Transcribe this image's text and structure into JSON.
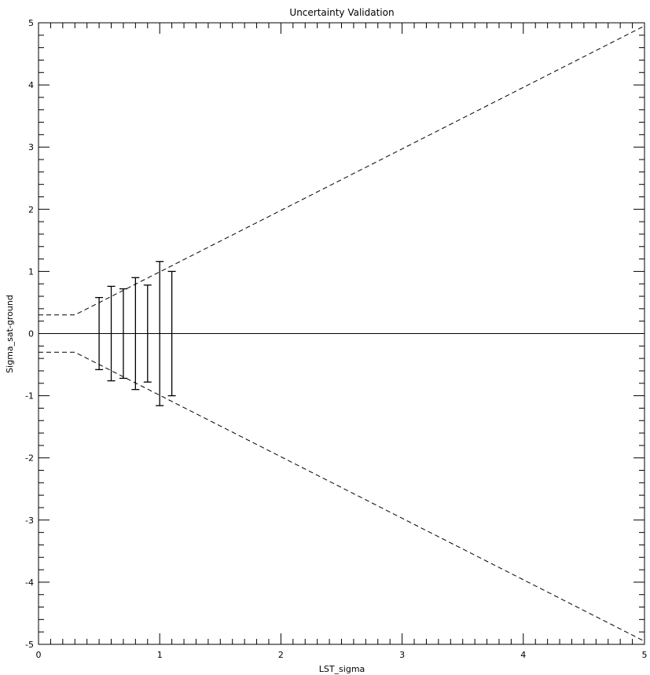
{
  "chart_data": {
    "type": "line",
    "title": "Uncertainty Validation",
    "xlabel": "LST_sigma",
    "ylabel": "Sigma_sat-ground",
    "xlim": [
      0,
      5
    ],
    "ylim": [
      -5,
      5
    ],
    "xticks": [
      0,
      1,
      2,
      3,
      4,
      5
    ],
    "yticks": [
      -5,
      -4,
      -3,
      -2,
      -1,
      0,
      1,
      2,
      3,
      4,
      5
    ],
    "x_minor_step": 0.1,
    "y_minor_step": 0.2,
    "grid": false,
    "series": [
      {
        "style": "dashed",
        "x": [
          0,
          0.3,
          5
        ],
        "y": [
          0.3,
          0.3,
          4.95
        ]
      },
      {
        "style": "dashed",
        "x": [
          0,
          0.3,
          5
        ],
        "y": [
          -0.3,
          -0.3,
          -4.95
        ]
      },
      {
        "style": "solid",
        "x": [
          0,
          5
        ],
        "y": [
          0,
          0
        ]
      }
    ],
    "error_bars": [
      {
        "x": 0.5,
        "low": -0.58,
        "high": 0.58
      },
      {
        "x": 0.6,
        "low": -0.76,
        "high": 0.76
      },
      {
        "x": 0.7,
        "low": -0.72,
        "high": 0.72
      },
      {
        "x": 0.8,
        "low": -0.9,
        "high": 0.9
      },
      {
        "x": 0.9,
        "low": -0.78,
        "high": 0.78
      },
      {
        "x": 1.0,
        "low": -1.16,
        "high": 1.16
      },
      {
        "x": 1.1,
        "low": -1.0,
        "high": 1.0
      }
    ]
  }
}
